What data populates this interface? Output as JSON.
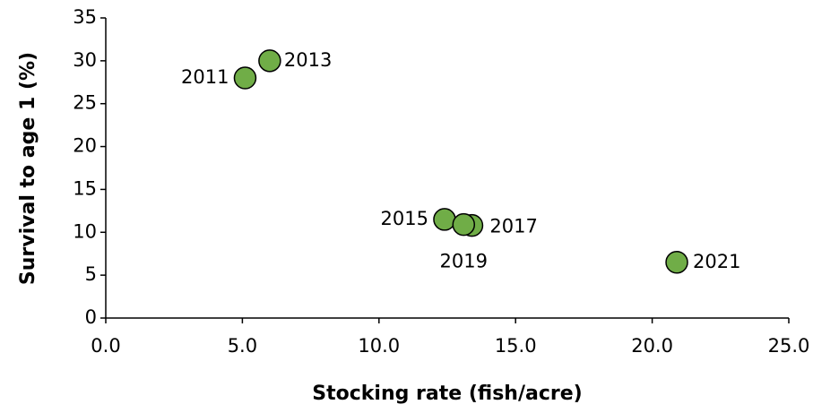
{
  "chart_data": {
    "type": "scatter",
    "xlabel": "Stocking rate (fish/acre)",
    "ylabel": "Survival to age 1 (%)",
    "series": [
      {
        "name": "Survival",
        "color": "#70ad47",
        "x": [
          5.1,
          6.0,
          12.4,
          13.4,
          13.1,
          20.9
        ],
        "values": [
          28,
          30,
          11.5,
          10.8,
          10.9,
          6.5
        ],
        "point_labels": [
          "2011",
          "2013",
          "2015",
          "2017",
          "2019",
          "2021"
        ]
      }
    ],
    "xlim": [
      0,
      25
    ],
    "xticks": [
      {
        "value": 0,
        "label": "0.0"
      },
      {
        "value": 5,
        "label": "5.0"
      },
      {
        "value": 10,
        "label": "10.0"
      },
      {
        "value": 15,
        "label": "15.0"
      },
      {
        "value": 20,
        "label": "20.0"
      },
      {
        "value": 25,
        "label": "25.0"
      }
    ],
    "ylim": [
      0,
      35
    ],
    "yticks": [
      0,
      5,
      10,
      15,
      20,
      25,
      30,
      35
    ],
    "grid": false
  }
}
